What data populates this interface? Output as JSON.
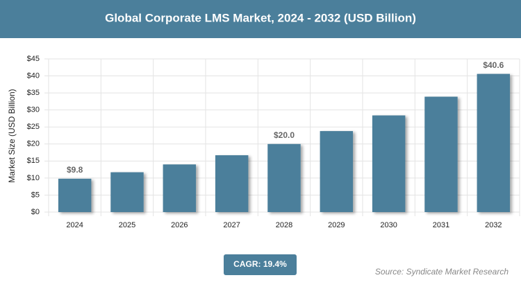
{
  "chart_data": {
    "type": "bar",
    "title": "Global Corporate LMS Market, 2024 - 2032 (USD Billion)",
    "y_label": "Market Size (USD Billion)",
    "categories": [
      "2024",
      "2025",
      "2026",
      "2027",
      "2028",
      "2029",
      "2030",
      "2031",
      "2032"
    ],
    "values": [
      9.8,
      11.7,
      14.0,
      16.7,
      20.0,
      23.8,
      28.4,
      33.9,
      40.6
    ],
    "value_labels": [
      "$9.8",
      null,
      null,
      null,
      "$20.0",
      null,
      null,
      null,
      "$40.6"
    ],
    "color": "#4b7f9b",
    "ylim": [
      0,
      45
    ],
    "yticks": [
      {
        "value": 0,
        "label": "$0"
      },
      {
        "value": 5,
        "label": "$5"
      },
      {
        "value": 10,
        "label": "$10"
      },
      {
        "value": 15,
        "label": "$15"
      },
      {
        "value": 20,
        "label": "$20"
      },
      {
        "value": 25,
        "label": "$25"
      },
      {
        "value": 30,
        "label": "$30"
      },
      {
        "value": 35,
        "label": "$35"
      },
      {
        "value": 40,
        "label": "$40"
      },
      {
        "value": 45,
        "label": "$45"
      }
    ],
    "grid": true,
    "cagr": "CAGR: 19.4%",
    "source": "Source: Syndicate Market Research"
  }
}
